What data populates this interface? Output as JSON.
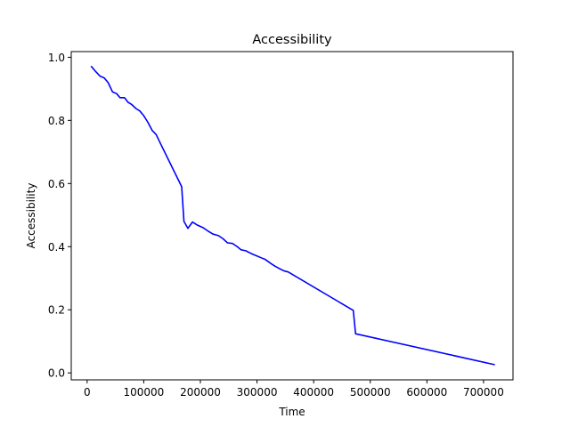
{
  "chart_data": {
    "type": "line",
    "title": "Accessibility",
    "xlabel": "Time",
    "ylabel": "Accessibility",
    "xlim": [
      -28000,
      752000
    ],
    "ylim": [
      -0.022,
      1.018
    ],
    "grid": false,
    "x_ticks": [
      {
        "value": 0,
        "label": "0"
      },
      {
        "value": 100000,
        "label": "100000"
      },
      {
        "value": 200000,
        "label": "200000"
      },
      {
        "value": 300000,
        "label": "300000"
      },
      {
        "value": 400000,
        "label": "400000"
      },
      {
        "value": 500000,
        "label": "500000"
      },
      {
        "value": 600000,
        "label": "600000"
      },
      {
        "value": 700000,
        "label": "700000"
      }
    ],
    "y_ticks": [
      {
        "value": 0.0,
        "label": "0.0"
      },
      {
        "value": 0.2,
        "label": "0.2"
      },
      {
        "value": 0.4,
        "label": "0.4"
      },
      {
        "value": 0.6,
        "label": "0.6"
      },
      {
        "value": 0.8,
        "label": "0.8"
      },
      {
        "value": 1.0,
        "label": "1.0"
      }
    ],
    "series": [
      {
        "name": "Accessibility",
        "color": "#0000ff",
        "x": [
          7000,
          15000,
          23000,
          30000,
          37000,
          45000,
          52000,
          58000,
          66000,
          72000,
          79000,
          86000,
          93000,
          100000,
          107000,
          115000,
          122000,
          130000,
          167000,
          171000,
          178000,
          186000,
          195000,
          205000,
          213000,
          222000,
          232000,
          240000,
          248000,
          257000,
          265000,
          272000,
          280000,
          290000,
          298000,
          307000,
          314000,
          325000,
          332000,
          340000,
          348000,
          355000,
          470000,
          474000,
          720000
        ],
        "y": [
          0.972,
          0.955,
          0.94,
          0.935,
          0.92,
          0.89,
          0.885,
          0.872,
          0.872,
          0.858,
          0.85,
          0.838,
          0.83,
          0.815,
          0.795,
          0.768,
          0.755,
          0.725,
          0.59,
          0.48,
          0.458,
          0.478,
          0.468,
          0.46,
          0.45,
          0.44,
          0.435,
          0.425,
          0.412,
          0.41,
          0.4,
          0.39,
          0.387,
          0.378,
          0.372,
          0.365,
          0.36,
          0.346,
          0.338,
          0.33,
          0.323,
          0.32,
          0.198,
          0.124,
          0.026
        ]
      }
    ]
  }
}
